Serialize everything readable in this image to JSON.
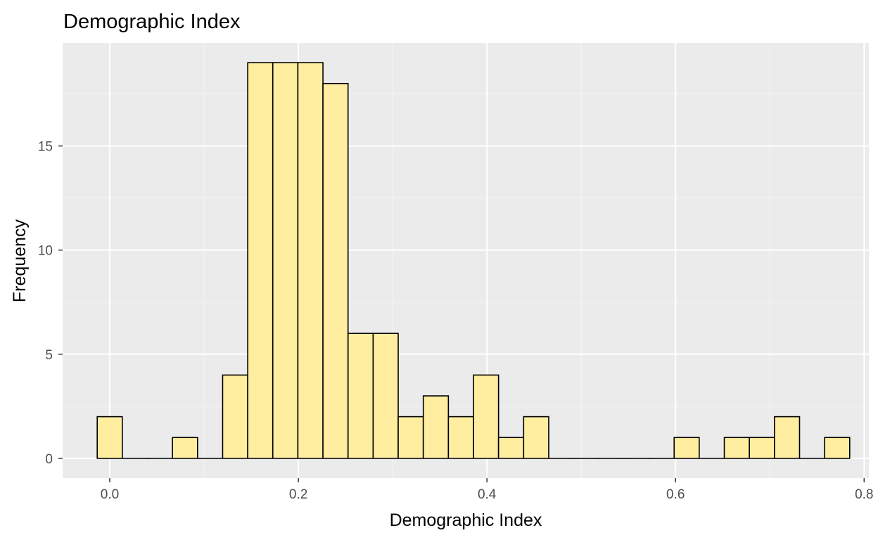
{
  "chart_data": {
    "type": "bar",
    "title": "Demographic Index",
    "xlabel": "Demographic Index",
    "ylabel": "Frequency",
    "xlim": [
      -0.05,
      0.805
    ],
    "ylim": [
      -0.95,
      19.95
    ],
    "x_ticks": [
      0.0,
      0.2,
      0.4,
      0.6,
      0.8
    ],
    "x_tick_labels": [
      "0.0",
      "0.2",
      "0.4",
      "0.6",
      "0.8"
    ],
    "y_ticks": [
      0,
      5,
      10,
      15
    ],
    "y_tick_labels": [
      "0",
      "5",
      "10",
      "15"
    ],
    "bin_width": 0.0266,
    "bins": [
      {
        "x": 0.0,
        "count": 2
      },
      {
        "x": 0.0266,
        "count": 0
      },
      {
        "x": 0.0532,
        "count": 0
      },
      {
        "x": 0.0798,
        "count": 1
      },
      {
        "x": 0.1064,
        "count": 0
      },
      {
        "x": 0.133,
        "count": 4
      },
      {
        "x": 0.1596,
        "count": 19
      },
      {
        "x": 0.1862,
        "count": 19
      },
      {
        "x": 0.2128,
        "count": 19
      },
      {
        "x": 0.2394,
        "count": 18
      },
      {
        "x": 0.266,
        "count": 6
      },
      {
        "x": 0.2926,
        "count": 6
      },
      {
        "x": 0.3192,
        "count": 2
      },
      {
        "x": 0.3458,
        "count": 3
      },
      {
        "x": 0.3724,
        "count": 2
      },
      {
        "x": 0.399,
        "count": 4
      },
      {
        "x": 0.4256,
        "count": 1
      },
      {
        "x": 0.4522,
        "count": 2
      },
      {
        "x": 0.4788,
        "count": 0
      },
      {
        "x": 0.5054,
        "count": 0
      },
      {
        "x": 0.532,
        "count": 0
      },
      {
        "x": 0.5586,
        "count": 0
      },
      {
        "x": 0.5852,
        "count": 0
      },
      {
        "x": 0.6118,
        "count": 1
      },
      {
        "x": 0.6384,
        "count": 0
      },
      {
        "x": 0.665,
        "count": 1
      },
      {
        "x": 0.6916,
        "count": 1
      },
      {
        "x": 0.7182,
        "count": 2
      },
      {
        "x": 0.7448,
        "count": 0
      },
      {
        "x": 0.7714,
        "count": 1
      }
    ],
    "grid": true,
    "colors": {
      "panel_background": "#ebebeb",
      "grid_major": "#ffffff",
      "grid_minor": "#f5f5f5",
      "bar_fill": "#ffeda0",
      "bar_outline": "#000000",
      "tick_label": "#4d4d4d",
      "tick_mark": "#333333"
    }
  }
}
